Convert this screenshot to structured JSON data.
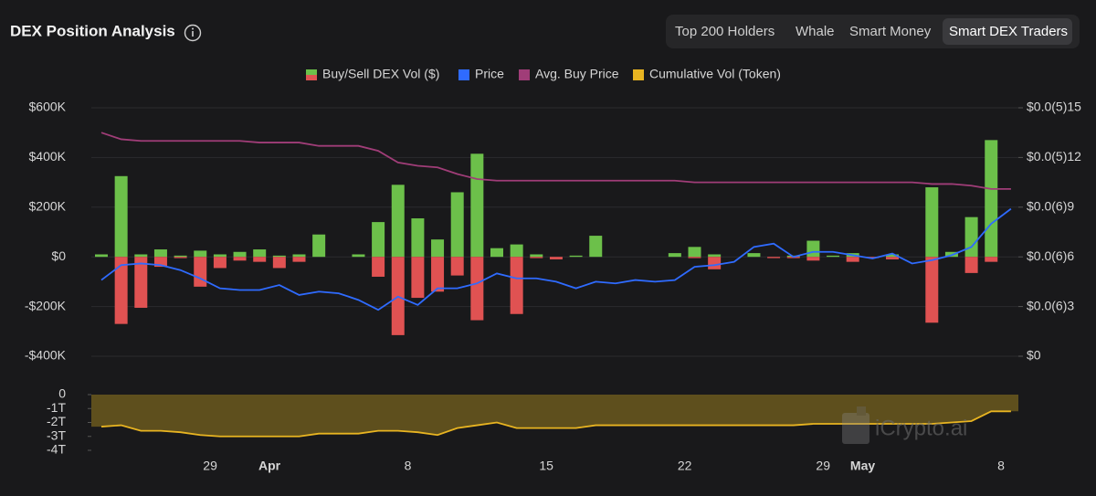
{
  "header": {
    "title": "DEX Position Analysis",
    "tabs": [
      "Top 200 Holders",
      "Whale",
      "Smart Money",
      "Smart DEX Traders"
    ],
    "active_tab": 3
  },
  "watermark": "iCrypto.ai",
  "chart_data": {
    "type": "combo",
    "categories": [
      null,
      null,
      null,
      null,
      null,
      "29",
      null,
      null,
      "Apr",
      null,
      null,
      null,
      null,
      null,
      null,
      "8",
      null,
      null,
      null,
      null,
      null,
      null,
      "15",
      null,
      null,
      null,
      null,
      null,
      null,
      "22",
      null,
      null,
      null,
      null,
      null,
      null,
      "29",
      null,
      "May",
      null,
      null,
      null,
      null,
      null,
      null,
      "8",
      null
    ],
    "ylim": [
      -400000,
      600000
    ],
    "yticks": [
      {
        "value": -400000,
        "label": "-$400K"
      },
      {
        "value": -200000,
        "label": "-$200K"
      },
      {
        "value": 0,
        "label": "$0"
      },
      {
        "value": 200000,
        "label": "$200K"
      },
      {
        "value": 400000,
        "label": "$400K"
      },
      {
        "value": 600000,
        "label": "$600K"
      }
    ],
    "y2lim": [
      0,
      1.5e-06
    ],
    "y2ticks": [
      {
        "value": 0,
        "label": "$0"
      },
      {
        "value": 3e-07,
        "label": "$0.0(6)3"
      },
      {
        "value": 6e-07,
        "label": "$0.0(6)6"
      },
      {
        "value": 9e-07,
        "label": "$0.0(6)9"
      },
      {
        "value": 1.2e-06,
        "label": "$0.0(5)12"
      },
      {
        "value": 1.5e-06,
        "label": "$0.0(5)15"
      }
    ],
    "y3lim": [
      -4000000000000.0,
      0
    ],
    "y3ticks": [
      0,
      {
        "value": -1000000000000.0,
        "label": "-1T"
      },
      {
        "value": -2000000000000.0,
        "label": "-2T"
      },
      {
        "value": -3000000000000.0,
        "label": "-3T"
      },
      {
        "value": -4000000000000.0,
        "label": "-4T"
      }
    ],
    "grid": true,
    "legend": "top",
    "series": [
      {
        "name": "Buy/Sell DEX Vol ($)",
        "type": "bar",
        "color": "#6cc04a",
        "negative_color": "#e05252",
        "values": [
          10000,
          325000,
          10000,
          30000,
          5000,
          25000,
          10000,
          20000,
          30000,
          5000,
          10000,
          90000,
          0,
          10000,
          140000,
          290000,
          155000,
          70000,
          260000,
          415000,
          35000,
          50000,
          10000,
          0,
          5000,
          85000,
          0,
          0,
          0,
          15000,
          40000,
          10000,
          0,
          15000,
          0,
          5000,
          65000,
          5000,
          15000,
          0,
          10000,
          0,
          280000,
          20000,
          160000,
          470000,
          null
        ],
        "sell_values": [
          0,
          -270000,
          -205000,
          -40000,
          -5000,
          -120000,
          -45000,
          -15000,
          -20000,
          -45000,
          -20000,
          0,
          0,
          0,
          -80000,
          -315000,
          -165000,
          -140000,
          -75000,
          -255000,
          0,
          -230000,
          -5000,
          -10000,
          0,
          0,
          0,
          0,
          0,
          0,
          -5000,
          -50000,
          0,
          0,
          -5000,
          -5000,
          -15000,
          0,
          -20000,
          -5000,
          -10000,
          0,
          -265000,
          0,
          -65000,
          -20000,
          null
        ]
      },
      {
        "name": "Price",
        "type": "line",
        "axis": "y2",
        "color": "#2f6bff",
        "values": [
          4.6e-07,
          5.5e-07,
          5.6e-07,
          5.5e-07,
          5.2e-07,
          4.7e-07,
          4.1e-07,
          4e-07,
          4e-07,
          4.3e-07,
          3.7e-07,
          3.9e-07,
          3.8e-07,
          3.4e-07,
          2.8e-07,
          3.6e-07,
          3.1e-07,
          4.1e-07,
          4.1e-07,
          4.4e-07,
          5e-07,
          4.7e-07,
          4.7e-07,
          4.5e-07,
          4.1e-07,
          4.5e-07,
          4.4e-07,
          4.6e-07,
          4.5e-07,
          4.6e-07,
          5.4e-07,
          5.5e-07,
          5.7e-07,
          6.6e-07,
          6.8e-07,
          6e-07,
          6.3e-07,
          6.3e-07,
          6.1e-07,
          5.9e-07,
          6.2e-07,
          5.6e-07,
          5.8e-07,
          6.1e-07,
          6.6e-07,
          8e-07,
          8.9e-07
        ]
      },
      {
        "name": "Avg. Buy Price",
        "type": "line",
        "axis": "y2",
        "color": "#a03d78",
        "values": [
          1.35e-06,
          1.31e-06,
          1.3e-06,
          1.3e-06,
          1.3e-06,
          1.3e-06,
          1.3e-06,
          1.3e-06,
          1.29e-06,
          1.29e-06,
          1.29e-06,
          1.27e-06,
          1.27e-06,
          1.27e-06,
          1.24e-06,
          1.17e-06,
          1.15e-06,
          1.14e-06,
          1.1e-06,
          1.07e-06,
          1.06e-06,
          1.06e-06,
          1.06e-06,
          1.06e-06,
          1.06e-06,
          1.06e-06,
          1.06e-06,
          1.06e-06,
          1.06e-06,
          1.06e-06,
          1.05e-06,
          1.05e-06,
          1.05e-06,
          1.05e-06,
          1.05e-06,
          1.05e-06,
          1.05e-06,
          1.05e-06,
          1.05e-06,
          1.05e-06,
          1.05e-06,
          1.05e-06,
          1.04e-06,
          1.04e-06,
          1.03e-06,
          1.01e-06,
          1.01e-06
        ]
      },
      {
        "name": "Cumulative Vol (Token)",
        "type": "area",
        "axis": "y3",
        "color": "#e8b421",
        "fill": "#5e4f1d",
        "values": [
          -2300000000000.0,
          -2200000000000.0,
          -2600000000000.0,
          -2600000000000.0,
          -2700000000000.0,
          -2900000000000.0,
          -3000000000000.0,
          -3000000000000.0,
          -3000000000000.0,
          -3000000000000.0,
          -3000000000000.0,
          -2800000000000.0,
          -2800000000000.0,
          -2800000000000.0,
          -2600000000000.0,
          -2600000000000.0,
          -2700000000000.0,
          -2900000000000.0,
          -2400000000000.0,
          -2200000000000.0,
          -2000000000000.0,
          -2400000000000.0,
          -2400000000000.0,
          -2400000000000.0,
          -2400000000000.0,
          -2200000000000.0,
          -2200000000000.0,
          -2200000000000.0,
          -2200000000000.0,
          -2200000000000.0,
          -2200000000000.0,
          -2200000000000.0,
          -2200000000000.0,
          -2200000000000.0,
          -2200000000000.0,
          -2200000000000.0,
          -2100000000000.0,
          -2100000000000.0,
          -2100000000000.0,
          -2100000000000.0,
          -2100000000000.0,
          -2100000000000.0,
          -2100000000000.0,
          -2000000000000.0,
          -1900000000000.0,
          -1200000000000.0,
          -1200000000000.0
        ]
      }
    ]
  }
}
